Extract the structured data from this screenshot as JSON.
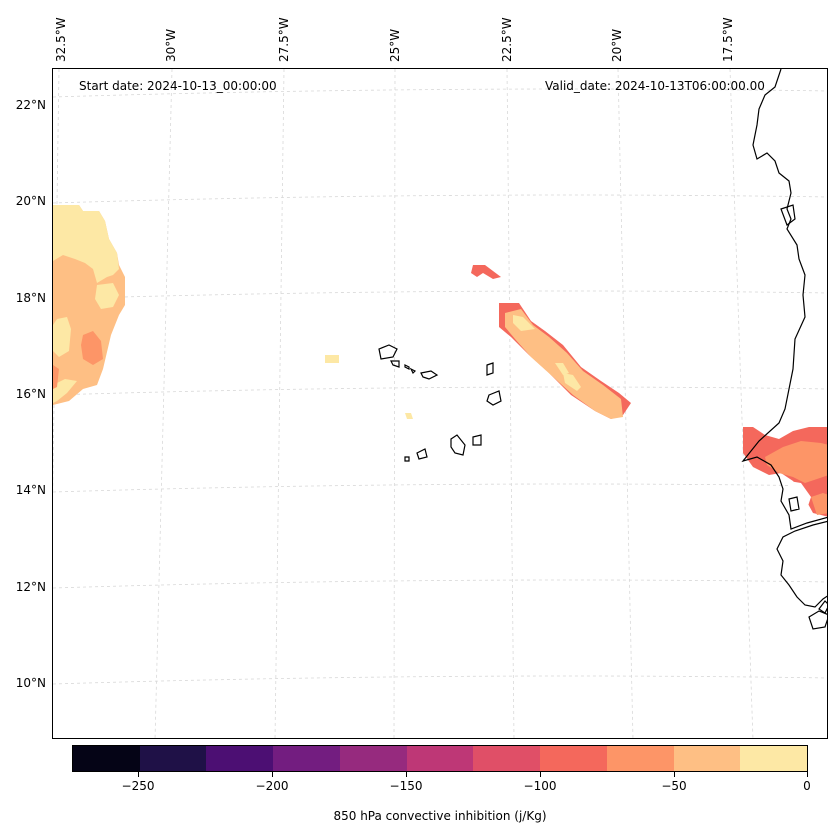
{
  "header": {
    "start_date": "Start date: 2024-10-13_00:00:00",
    "valid_date": "Valid_date: 2024-10-13T06:00:00.00"
  },
  "longitude_labels": [
    "32.5°W",
    "30°W",
    "27.5°W",
    "25°W",
    "22.5°W",
    "20°W",
    "17.5°W"
  ],
  "latitude_labels": [
    "22°N",
    "20°N",
    "18°N",
    "16°N",
    "14°N",
    "12°N",
    "10°N"
  ],
  "colorbar": {
    "title": "850 hPa convective inhibition (j/Kg)",
    "tick_labels": [
      "−250",
      "−200",
      "−150",
      "−100",
      "−50",
      "0"
    ],
    "colors": [
      "#050416",
      "#1f1147",
      "#4c0f73",
      "#731d80",
      "#962a7e",
      "#be3776",
      "#e04f67",
      "#f4685c",
      "#fd9567",
      "#febf84",
      "#fde8a5"
    ]
  },
  "chart_data": {
    "type": "heatmap",
    "variable": "850 hPa convective inhibition (j/Kg)",
    "start_date": "2024-10-13_00:00:00",
    "valid_date": "2024-10-13T06:00:00.00",
    "colorbar_range": [
      -275,
      0
    ],
    "colorbar_levels": [
      -275,
      -250,
      -225,
      -200,
      -175,
      -150,
      -125,
      -100,
      -75,
      -50,
      -25,
      0
    ],
    "lon_ticks": [
      -32.5,
      -30,
      -27.5,
      -25,
      -22.5,
      -20,
      -17.5
    ],
    "lat_ticks": [
      22,
      20,
      18,
      16,
      14,
      12,
      10
    ],
    "gridlines": true
  }
}
